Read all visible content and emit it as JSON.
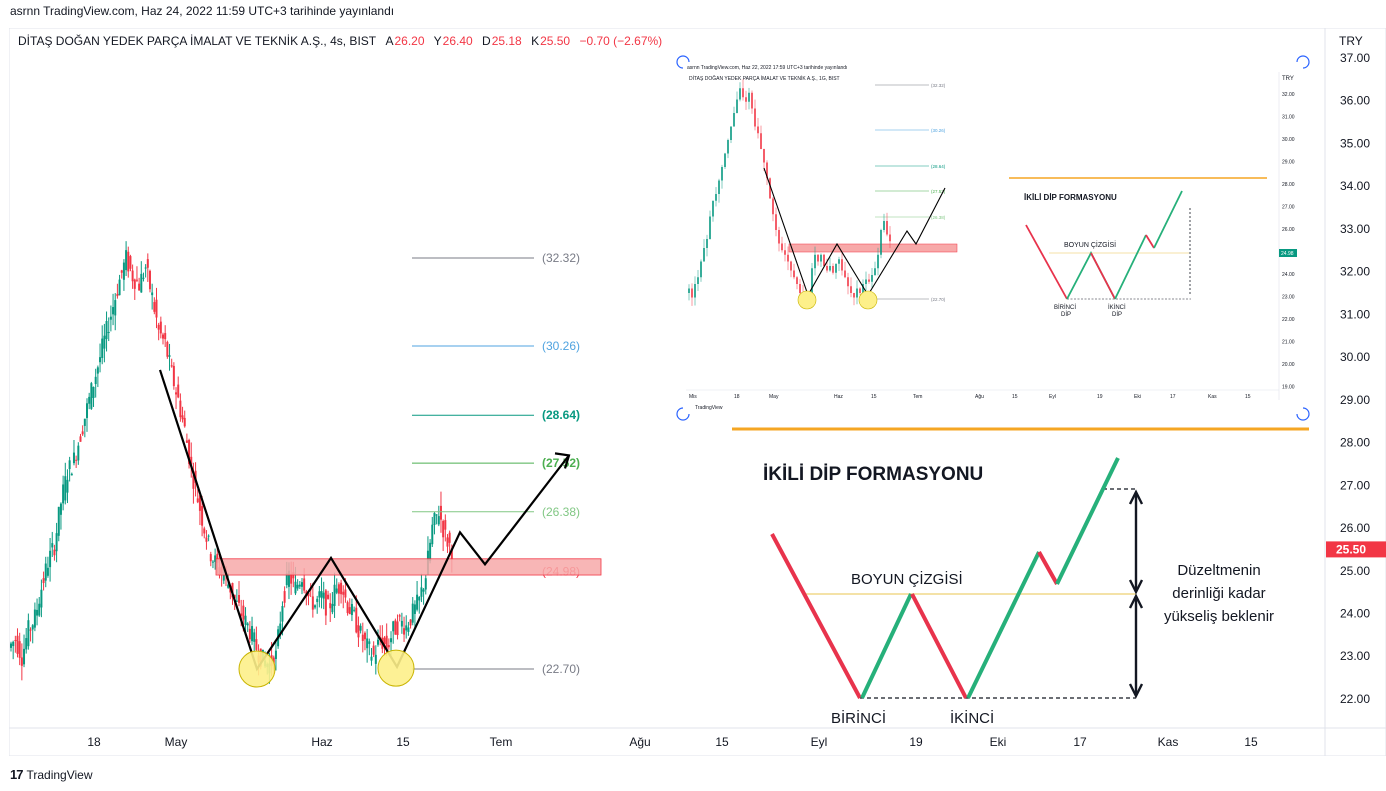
{
  "attribution": "asrnn TradingView.com, Haz 24, 2022 11:59 UTC+3 tarihinde yayınlandı",
  "legend": {
    "symbol": "DİTAŞ DOĞAN YEDEK PARÇA İMALAT VE TEKNİK A.Ş., 4s, BIST",
    "open_label": "A",
    "open": "26.20",
    "high_label": "Y",
    "high": "26.40",
    "low_label": "D",
    "low": "25.18",
    "close_label": "K",
    "close": "25.50",
    "change": "−0.70 (−2.67%)"
  },
  "currency": "TRY",
  "branding": "TradingView",
  "annotation": {
    "title": "İKİLİ DİP FORMASYONU",
    "neckline": "BOYUN ÇİZGİSİ",
    "first_bottom": "BİRİNCİ",
    "second_bottom": "İKİNCİ",
    "note_lines": [
      "Düzeltmenin",
      "derinliği kadar",
      "yükseliş beklenir"
    ]
  },
  "inset": {
    "attribution": "asrnn TradingView.com, Haz 22, 2022 17:59 UTC+3 tarihinde yayınlandı",
    "legend": "DİTAŞ DOĞAN YEDEK PARÇA İMALAT VE TEKNİK A.Ş., 1G, BIST",
    "currency": "TRY",
    "price_tag": "24.98",
    "title": "İKİLİ DİP FORMASYONU",
    "neckline": "BOYUN ÇİZGİSİ",
    "first_bottom": [
      "BİRİNCİ",
      "DİP"
    ],
    "second_bottom": [
      "İKİNCİ",
      "DİP"
    ],
    "fib_labels": [
      "(32.32)",
      "(30.26)",
      "(28.64)",
      "(27.52)",
      "(26.38)",
      "(24.98)",
      "(22.70)"
    ],
    "y_ticks": [
      "32.00",
      "31.00",
      "30.00",
      "29.00",
      "28.00",
      "27.00",
      "26.00",
      "25.00",
      "24.00",
      "23.00",
      "22.00",
      "21.00",
      "20.00",
      "19.00"
    ],
    "x_ticks": [
      "Mis",
      "18",
      "May",
      "Haz",
      "15",
      "Tem",
      "Ağu",
      "15",
      "Eyl",
      "19",
      "Eki",
      "17",
      "Kas",
      "15"
    ],
    "brand": "TradingView"
  },
  "chart_data": {
    "type": "candlestick",
    "y_ticks": [
      37,
      36,
      35,
      34,
      33,
      32,
      31,
      30,
      29,
      28,
      27,
      26,
      25,
      24,
      23,
      22
    ],
    "ylim": [
      21.6,
      37.3
    ],
    "x_ticks": [
      "18",
      "May",
      "Haz",
      "15",
      "Tem",
      "Ağu",
      "15",
      "Eyl",
      "19",
      "Eki",
      "17",
      "Kas",
      "15"
    ],
    "last_price": "25.50",
    "fib_levels": [
      {
        "label": "(32.32)",
        "value": 32.32,
        "color": "#787b86"
      },
      {
        "label": "(30.26)",
        "value": 30.26,
        "color": "#4fa3e0"
      },
      {
        "label": "(28.64)",
        "value": 28.64,
        "color": "#089981"
      },
      {
        "label": "(27.52)",
        "value": 27.52,
        "color": "#4caf50"
      },
      {
        "label": "(26.38)",
        "value": 26.38,
        "color": "#81c784"
      },
      {
        "label": "(24.98)",
        "value": 24.98,
        "color": "#f23645"
      },
      {
        "label": "(22.70)",
        "value": 22.7,
        "color": "#787b86"
      }
    ],
    "neckline_zone": [
      24.9,
      25.28
    ],
    "pattern_path": [
      29.7,
      22.7,
      25.3,
      22.75,
      25.9,
      25.15,
      27.7
    ],
    "bottoms": [
      22.7,
      22.72
    ],
    "price_path": [
      23.2,
      23.4,
      23.0,
      23.6,
      23.9,
      24.6,
      25.2,
      25.6,
      26.6,
      27.3,
      27.6,
      28.2,
      28.8,
      29.4,
      30.0,
      30.6,
      31.2,
      31.8,
      32.3,
      31.9,
      31.7,
      32.1,
      31.4,
      30.6,
      30.3,
      29.6,
      29.0,
      28.3,
      27.4,
      26.7,
      26.0,
      25.4,
      25.1,
      24.9,
      24.6,
      24.2,
      23.9,
      23.6,
      23.2,
      22.9,
      22.8,
      23.0,
      24.3,
      24.9,
      24.6,
      24.9,
      24.4,
      24.2,
      24.4,
      24.1,
      24.5,
      24.7,
      24.2,
      23.9,
      23.5,
      23.2,
      23.0,
      23.4,
      23.2,
      23.6,
      23.8,
      23.7,
      24.0,
      24.3,
      24.9,
      26.0,
      26.4,
      25.8,
      25.5
    ],
    "colors": {
      "up": "#089981",
      "down": "#f23645",
      "pattern": "#000000",
      "neckline": "#f7a9a9",
      "bottom_circle": "#fdf08a",
      "orange_line": "#f5a623"
    }
  }
}
